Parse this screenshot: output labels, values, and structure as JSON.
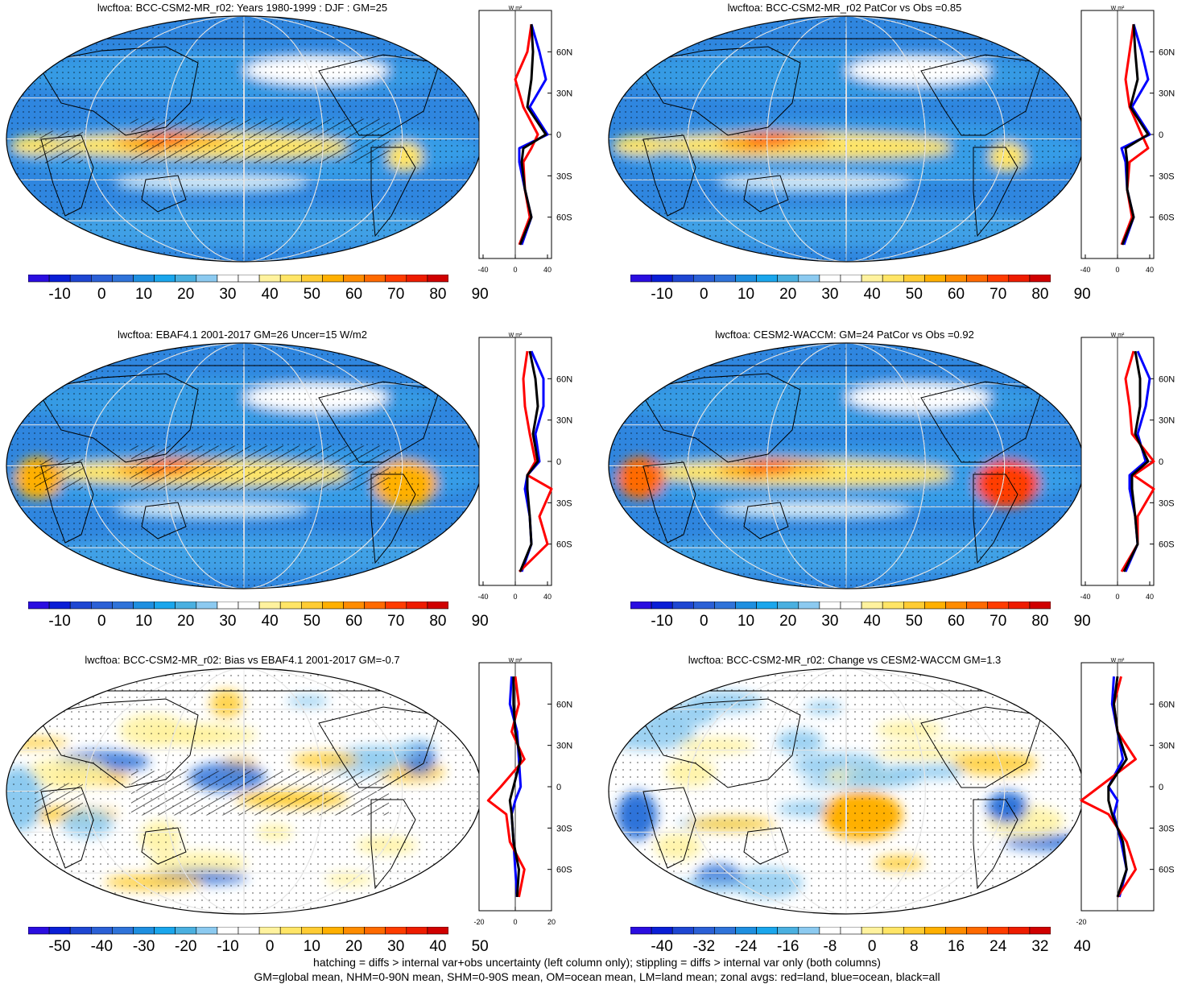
{
  "panels": [
    {
      "id": "p1",
      "title": "lwcftoa: BCC-CSM2-MR_r02: Years 1980-1999 : DJF : GM=25",
      "scale": "abs",
      "hatch": true,
      "stipple": "dense",
      "cbar": [
        "-10",
        "0",
        "10",
        "20",
        "30",
        "40",
        "50",
        "60",
        "70",
        "80",
        "90"
      ],
      "zx": [
        "-40",
        "0",
        "40"
      ]
    },
    {
      "id": "p2",
      "title": "lwcftoa: BCC-CSM2-MR_r02 PatCor vs Obs =0.85",
      "scale": "abs",
      "hatch": false,
      "stipple": "dense",
      "cbar": [
        "-10",
        "0",
        "10",
        "20",
        "30",
        "40",
        "50",
        "60",
        "70",
        "80",
        "90"
      ],
      "zx": [
        "-40",
        "0",
        "40"
      ]
    },
    {
      "id": "p3",
      "title": "lwcftoa: EBAF4.1 2001-2017 GM=26 Uncer=15 W/m2",
      "scale": "abs",
      "hatch": true,
      "stipple": "dense",
      "cbar": [
        "-10",
        "0",
        "10",
        "20",
        "30",
        "40",
        "50",
        "60",
        "70",
        "80",
        "90"
      ],
      "zx": [
        "-40",
        "0",
        "40"
      ]
    },
    {
      "id": "p4",
      "title": "lwcftoa: CESM2-WACCM: GM=24 PatCor vs Obs =0.92",
      "scale": "abs",
      "hatch": false,
      "stipple": "dense",
      "cbar": [
        "-10",
        "0",
        "10",
        "20",
        "30",
        "40",
        "50",
        "60",
        "70",
        "80",
        "90"
      ],
      "zx": [
        "-40",
        "0",
        "40"
      ]
    },
    {
      "id": "p5",
      "title": "lwcftoa: BCC-CSM2-MR_r02: Bias vs EBAF4.1 2001-2017 GM=-0.7",
      "scale": "diff",
      "hatch": true,
      "stipple": "sparse",
      "cbar": [
        "-50",
        "-40",
        "-30",
        "-20",
        "-10",
        "0",
        "10",
        "20",
        "30",
        "40",
        "50"
      ],
      "zx": [
        "-20",
        "0",
        "20"
      ]
    },
    {
      "id": "p6",
      "title": "lwcftoa: BCC-CSM2-MR_r02: Change vs CESM2-WACCM GM=1.3",
      "scale": "diff",
      "hatch": false,
      "stipple": "sparse",
      "cbar": [
        "-40",
        "-32",
        "-24",
        "-16",
        "-8",
        "0",
        "8",
        "16",
        "24",
        "32",
        "40"
      ],
      "zx": [
        "-20"
      ]
    }
  ],
  "zonal_axis": {
    "unit": "W m²",
    "lat_labels": [
      "60N",
      "30N",
      "0",
      "30S",
      "60S"
    ]
  },
  "colors": {
    "land": "#ff0000",
    "ocean": "#0000ff",
    "all": "#000000",
    "abs_scale": [
      "#2a0de0",
      "#0a1ed6",
      "#1e46d2",
      "#2b60d6",
      "#2f73d9",
      "#1e8fe0",
      "#1aa6ec",
      "#4ab0e0",
      "#8ccaf0",
      "#ffffff",
      "#ffffff",
      "#fff29e",
      "#ffe566",
      "#ffcc33",
      "#ffb000",
      "#ff8c00",
      "#ff6a00",
      "#ff3c00",
      "#ee1c00",
      "#d00000"
    ],
    "diff_scale": [
      "#2a0de0",
      "#0a1ed6",
      "#1e46d2",
      "#2b60d6",
      "#2f73d9",
      "#1e8fe0",
      "#1aa6ec",
      "#4ab0e0",
      "#8ccaf0",
      "#ffffff",
      "#ffffff",
      "#fff29e",
      "#ffe566",
      "#ffcc33",
      "#ffb000",
      "#ff8c00",
      "#ff6a00",
      "#ff3c00",
      "#ee1c00",
      "#d00000"
    ]
  },
  "chart_data": [
    {
      "type": "heatmap",
      "title": "lwcftoa: BCC-CSM2-MR_r02: Years 1980-1999 : DJF : GM=25",
      "colorbar_ticks": [
        -10,
        0,
        10,
        20,
        30,
        40,
        50,
        60,
        70,
        80,
        90
      ],
      "zonal_lat": [
        80,
        60,
        40,
        20,
        0,
        -10,
        -20,
        -40,
        -60,
        -80
      ],
      "zonal_land": [
        20,
        15,
        0,
        10,
        28,
        20,
        10,
        12,
        18,
        5
      ],
      "zonal_ocean": [
        20,
        30,
        38,
        18,
        40,
        5,
        5,
        12,
        20,
        8
      ],
      "zonal_all": [
        20,
        22,
        20,
        15,
        38,
        10,
        8,
        12,
        20,
        6
      ]
    },
    {
      "type": "heatmap",
      "title": "lwcftoa: BCC-CSM2-MR_r02 PatCor vs Obs =0.85",
      "colorbar_ticks": [
        -10,
        0,
        10,
        20,
        30,
        40,
        50,
        60,
        70,
        80,
        90
      ],
      "zonal_lat": [
        80,
        60,
        40,
        20,
        0,
        -10,
        -20,
        -40,
        -60,
        -80
      ],
      "zonal_land": [
        20,
        15,
        10,
        15,
        30,
        38,
        15,
        12,
        18,
        5
      ],
      "zonal_ocean": [
        20,
        30,
        38,
        18,
        40,
        5,
        10,
        12,
        20,
        8
      ],
      "zonal_all": [
        20,
        22,
        25,
        16,
        38,
        10,
        12,
        12,
        20,
        6
      ]
    },
    {
      "type": "heatmap",
      "title": "lwcftoa: EBAF4.1 2001-2017 GM=26 Uncer=15 W/m2",
      "colorbar_ticks": [
        -10,
        0,
        10,
        20,
        30,
        40,
        50,
        60,
        70,
        80,
        90
      ],
      "zonal_lat": [
        80,
        60,
        40,
        20,
        0,
        -10,
        -20,
        -40,
        -60,
        -80
      ],
      "zonal_land": [
        15,
        10,
        12,
        18,
        25,
        15,
        45,
        30,
        40,
        5
      ],
      "zonal_ocean": [
        20,
        35,
        35,
        25,
        30,
        15,
        12,
        18,
        20,
        8
      ],
      "zonal_all": [
        18,
        25,
        28,
        22,
        28,
        15,
        15,
        18,
        20,
        6
      ]
    },
    {
      "type": "heatmap",
      "title": "lwcftoa: CESM2-WACCM: GM=24 PatCor vs Obs =0.92",
      "colorbar_ticks": [
        -10,
        0,
        10,
        20,
        30,
        40,
        50,
        60,
        70,
        80,
        90
      ],
      "zonal_lat": [
        80,
        60,
        40,
        20,
        0,
        -10,
        -20,
        -40,
        -60,
        -80
      ],
      "zonal_land": [
        20,
        10,
        15,
        18,
        45,
        20,
        45,
        25,
        25,
        5
      ],
      "zonal_ocean": [
        25,
        40,
        35,
        25,
        35,
        15,
        15,
        22,
        25,
        10
      ],
      "zonal_all": [
        22,
        28,
        28,
        22,
        38,
        18,
        18,
        22,
        25,
        8
      ]
    },
    {
      "type": "heatmap",
      "title": "lwcftoa: BCC-CSM2-MR_r02: Bias vs EBAF4.1 2001-2017 GM=-0.7",
      "colorbar_ticks": [
        -50,
        -40,
        -30,
        -20,
        -10,
        0,
        10,
        20,
        30,
        40,
        50
      ],
      "zonal_lat": [
        80,
        60,
        40,
        20,
        0,
        -10,
        -20,
        -40,
        -60,
        -80
      ],
      "zonal_land": [
        0,
        2,
        -2,
        5,
        -8,
        -15,
        -5,
        -3,
        5,
        2
      ],
      "zonal_ocean": [
        -2,
        -3,
        1,
        2,
        3,
        0,
        -2,
        -1,
        0,
        1
      ],
      "zonal_all": [
        -1,
        -1,
        0,
        3,
        -1,
        -3,
        -2,
        -1,
        2,
        1
      ]
    },
    {
      "type": "heatmap",
      "title": "lwcftoa: BCC-CSM2-MR_r02: Change vs CESM2-WACCM GM=1.3",
      "colorbar_ticks": [
        -40,
        -32,
        -24,
        -16,
        -8,
        0,
        8,
        16,
        24,
        32,
        40
      ],
      "zonal_lat": [
        80,
        60,
        40,
        20,
        0,
        -10,
        -20,
        -40,
        -60,
        -80
      ],
      "zonal_land": [
        2,
        -2,
        0,
        10,
        -10,
        -20,
        -5,
        5,
        10,
        0
      ],
      "zonal_ocean": [
        -2,
        -3,
        0,
        3,
        -5,
        0,
        -2,
        2,
        5,
        1
      ],
      "zonal_all": [
        0,
        -2,
        0,
        5,
        -5,
        -5,
        -3,
        3,
        5,
        0
      ]
    }
  ],
  "footer": {
    "line1": "hatching = diffs > internal var+obs uncertainty (left column only); stippling = diffs > internal var only (both columns)",
    "line2": "GM=global mean, NHM=0-90N mean, SHM=0-90S mean, OM=ocean mean, LM=land mean; zonal avgs: red=land, blue=ocean, black=all"
  }
}
